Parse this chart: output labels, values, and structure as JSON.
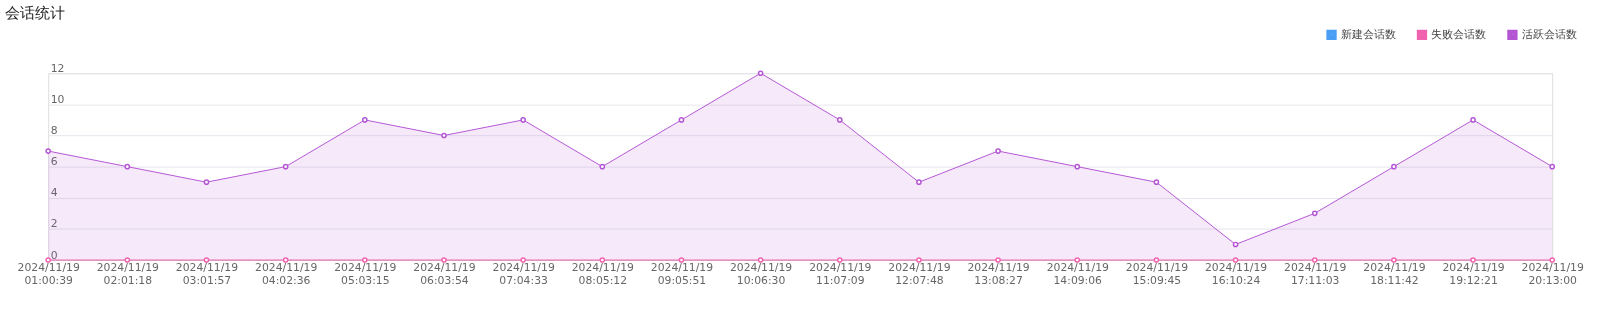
{
  "chart_data": {
    "type": "line",
    "title": "会话统计",
    "categories": [
      "2024/11/19 01:00:39",
      "2024/11/19 02:01:18",
      "2024/11/19 03:01:57",
      "2024/11/19 04:02:36",
      "2024/11/19 05:03:15",
      "2024/11/19 06:03:54",
      "2024/11/19 07:04:33",
      "2024/11/19 08:05:12",
      "2024/11/19 09:05:51",
      "2024/11/19 10:06:30",
      "2024/11/19 11:07:09",
      "2024/11/19 12:07:48",
      "2024/11/19 13:08:27",
      "2024/11/19 14:09:06",
      "2024/11/19 15:09:45",
      "2024/11/19 16:10:24",
      "2024/11/19 17:11:03",
      "2024/11/19 18:11:42",
      "2024/11/19 19:12:21",
      "2024/11/19 20:13:00"
    ],
    "series": [
      {
        "name": "新建会话数",
        "color": "#4a9ff5",
        "type": "line",
        "values": [
          null,
          null,
          null,
          null,
          null,
          null,
          null,
          null,
          null,
          null,
          null,
          null,
          null,
          null,
          null,
          null,
          null,
          null,
          null,
          null
        ]
      },
      {
        "name": "失败会话数",
        "color": "#f062b0",
        "values": [
          0,
          0,
          0,
          0,
          0,
          0,
          0,
          0,
          0,
          0,
          0,
          0,
          0,
          0,
          0,
          0,
          0,
          0,
          0,
          0
        ]
      },
      {
        "name": "活跃会话数",
        "color": "#b455d4",
        "type": "area",
        "values": [
          7,
          6,
          5,
          6,
          9,
          8,
          9,
          6,
          9,
          12,
          9,
          5,
          7,
          6,
          5,
          1,
          3,
          6,
          9,
          6
        ]
      }
    ],
    "ylim": [
      0,
      12
    ],
    "yticks": [
      0,
      2,
      4,
      6,
      8,
      10,
      12
    ],
    "grid": "y",
    "legend": "top right",
    "marker": "circle",
    "line_style": "solid"
  }
}
